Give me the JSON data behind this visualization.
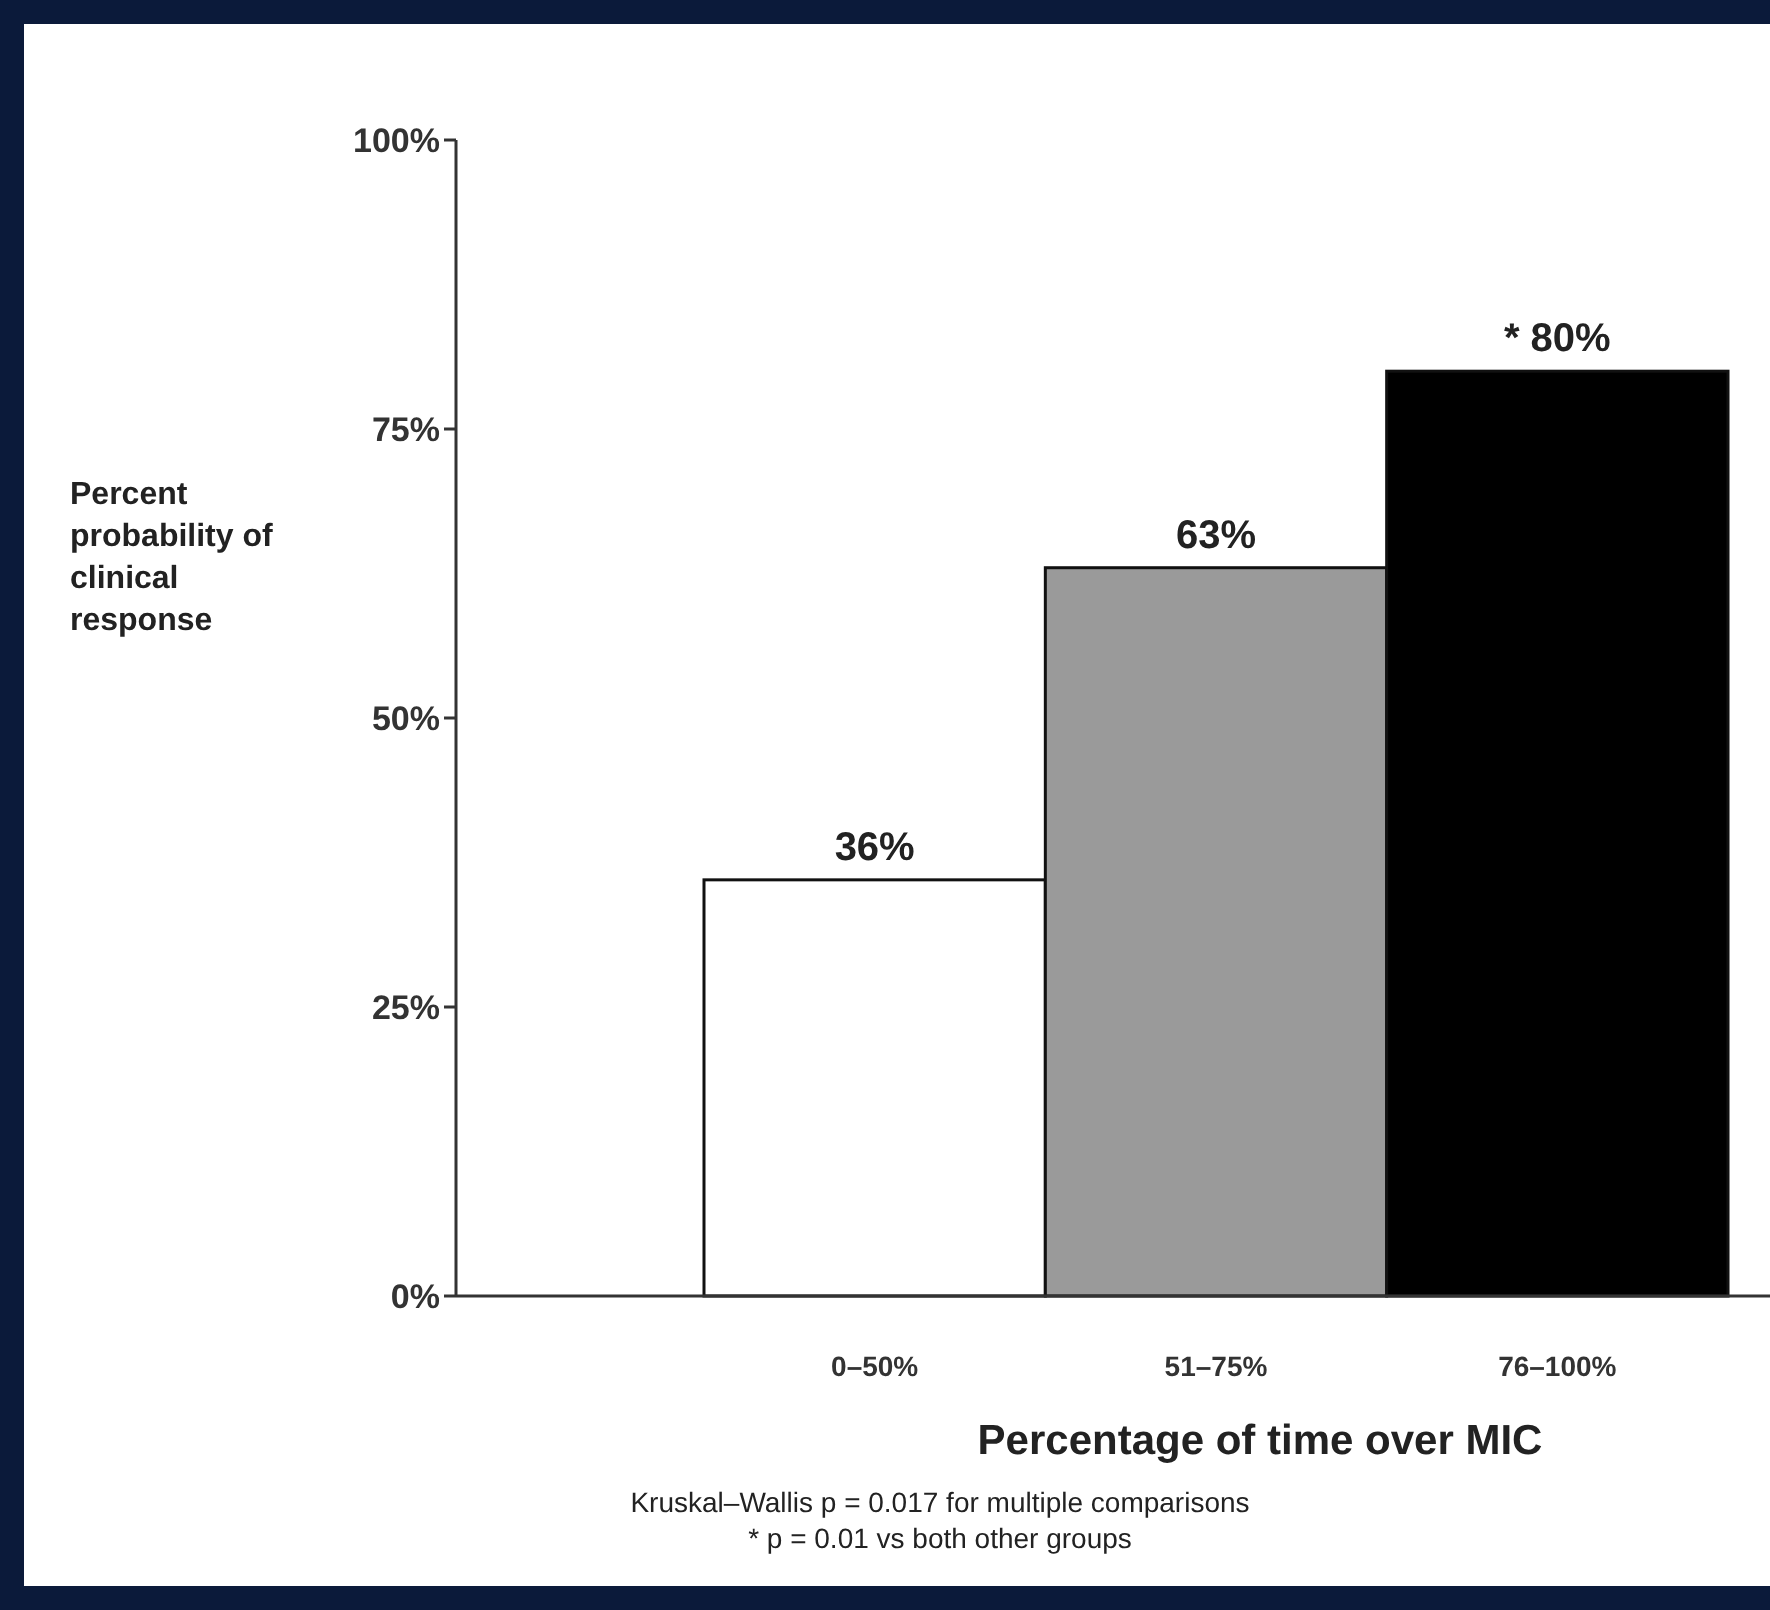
{
  "chart_data": {
    "type": "bar",
    "xlabel": "Percentage of time over MIC",
    "ylabel": "Percent probability of clinical response",
    "categories": [
      "0–50%",
      "51–75%",
      "76–100%"
    ],
    "values": [
      36,
      63,
      80
    ],
    "colors": [
      "#ffffff",
      "#9a9a9a",
      "#000000"
    ],
    "value_labels": [
      "36%",
      "63%",
      "* 80%"
    ],
    "ylim": [
      0,
      100
    ],
    "yticks": [
      {
        "value": 0,
        "label": "0%"
      },
      {
        "value": 25,
        "label": "25%"
      },
      {
        "value": 50,
        "label": "50%"
      },
      {
        "value": 75,
        "label": "75%"
      },
      {
        "value": 100,
        "label": "100%"
      }
    ],
    "annotations": [
      "Kruskal–Wallis p = 0.017 for multiple comparisons",
      "* p = 0.01 vs  both other groups"
    ]
  }
}
